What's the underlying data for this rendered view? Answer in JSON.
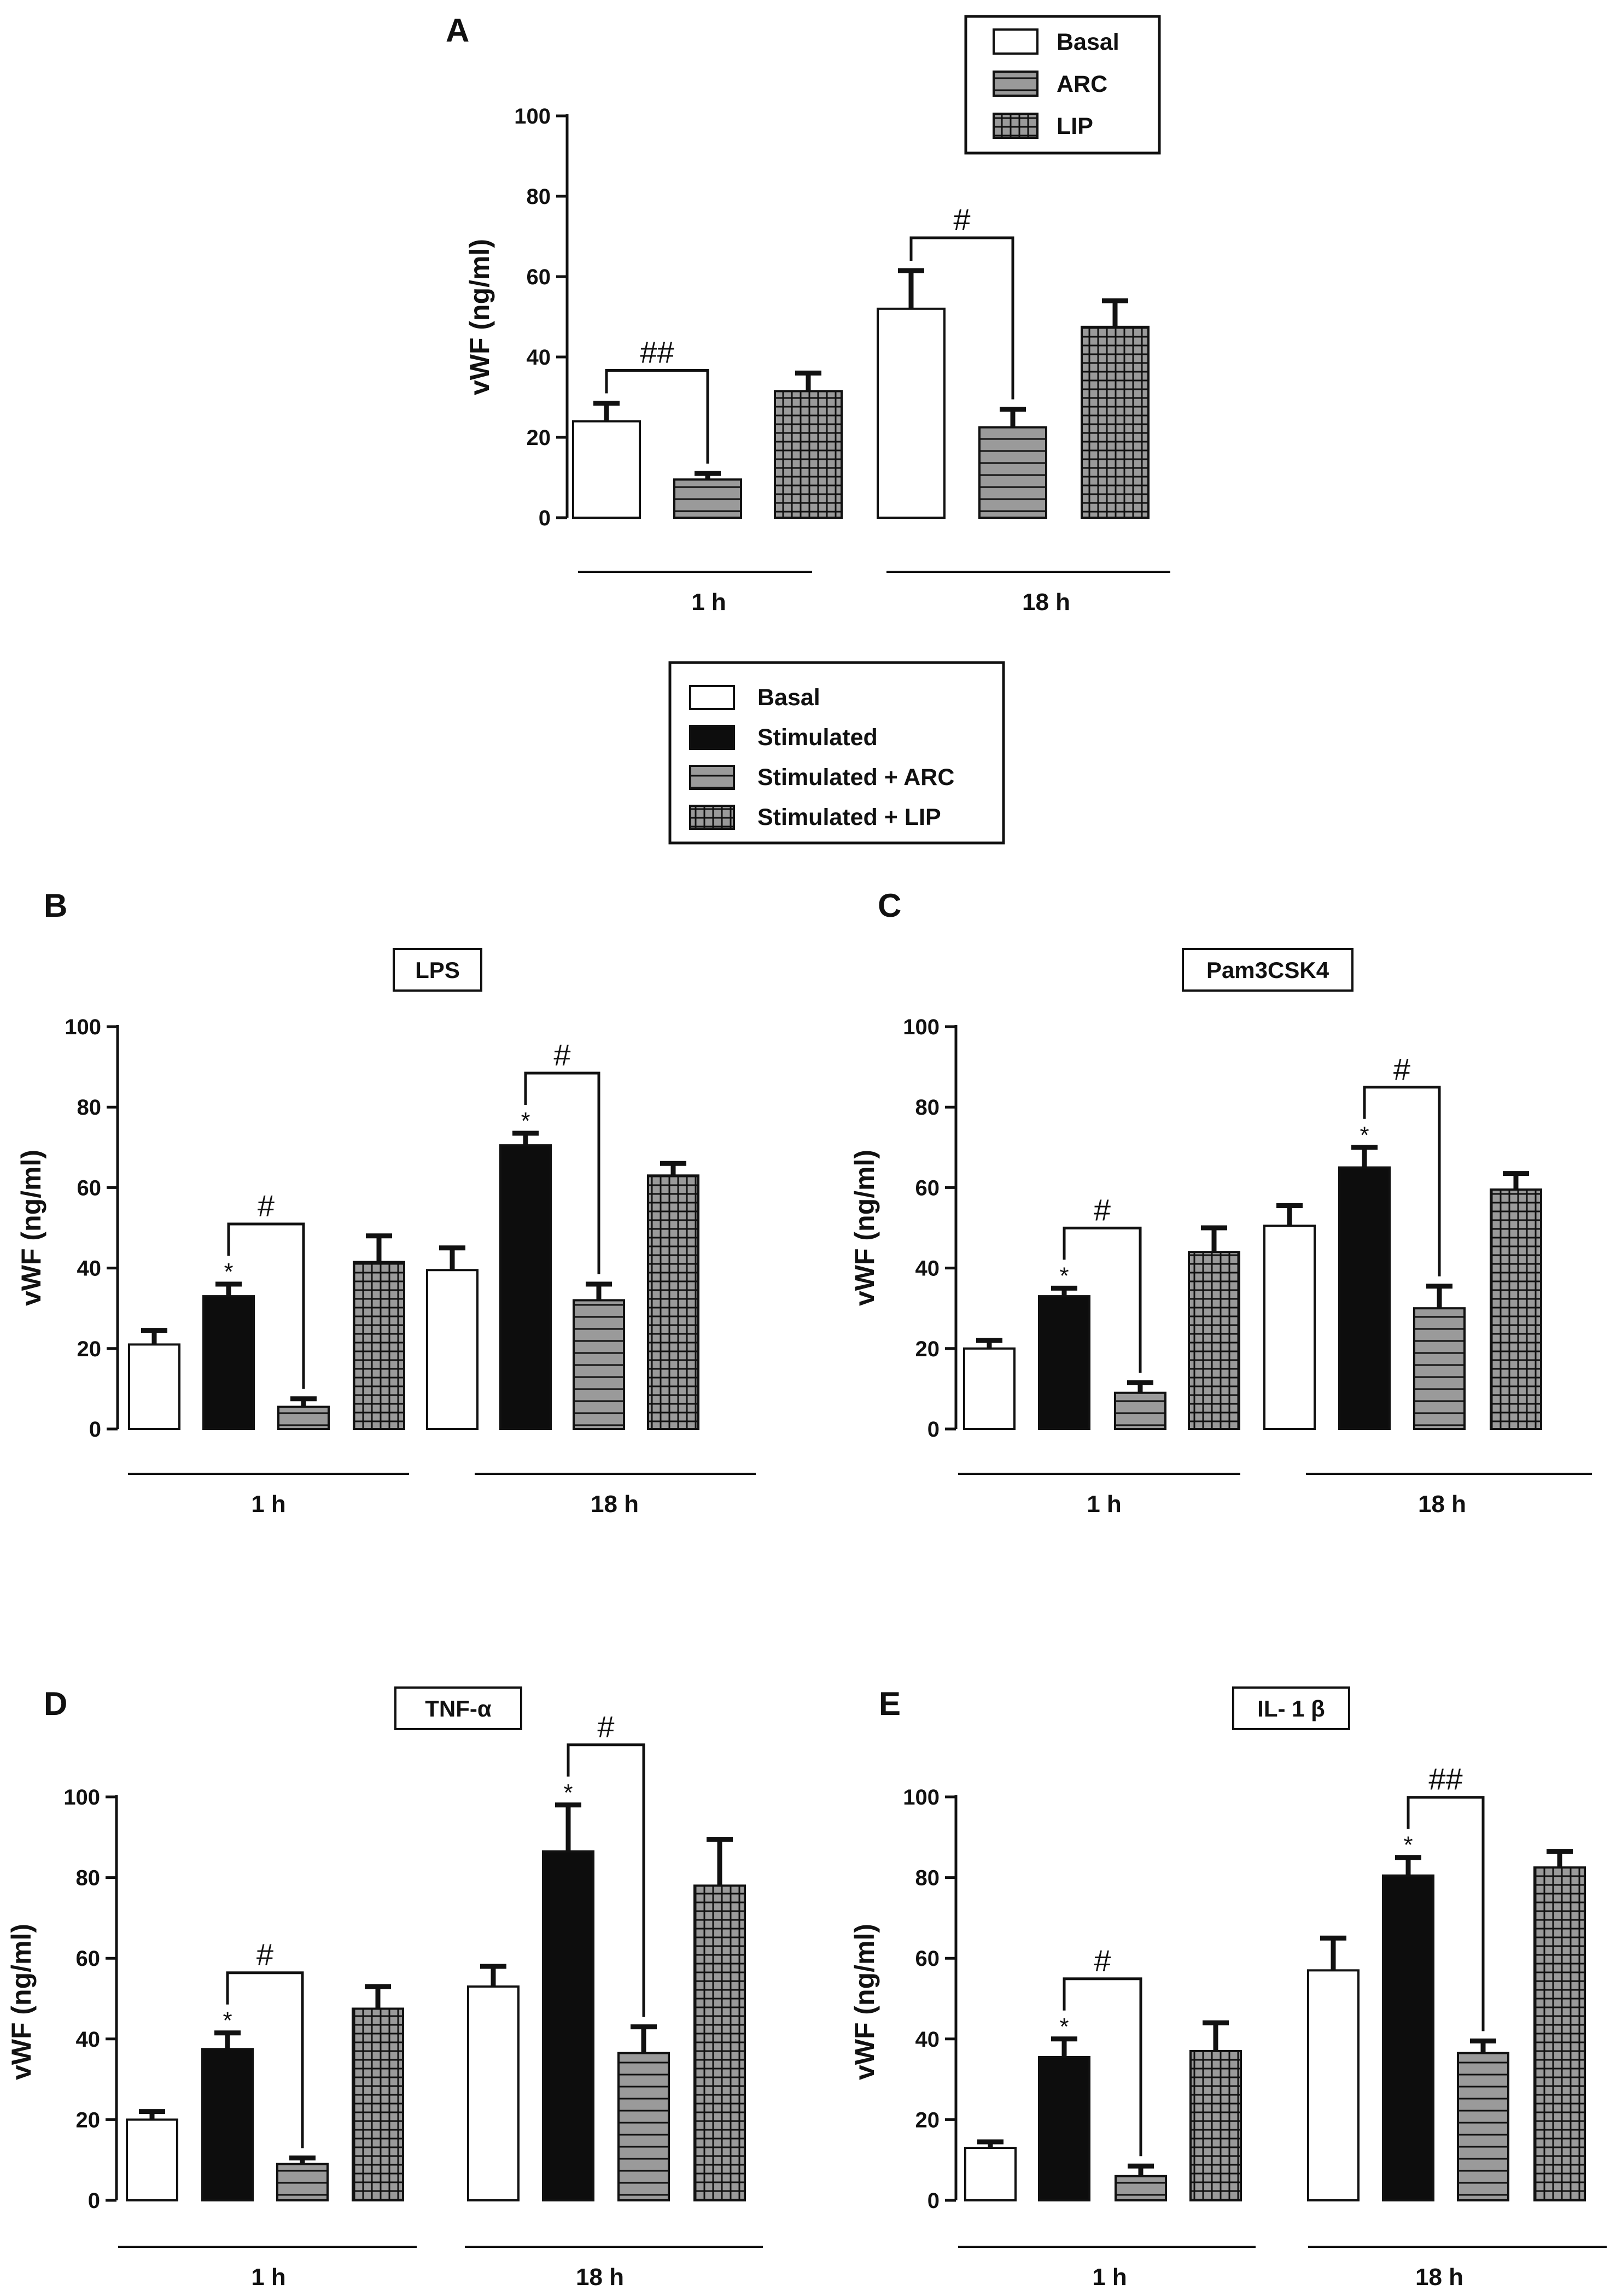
{
  "colors": {
    "basal": "#ffffff",
    "stimulated": "#0d0d0d",
    "arc": "#9a9a9a",
    "lip": "#9a9a9a",
    "outline": "#111111"
  },
  "chart_data": [
    {
      "id": "A",
      "type": "bar",
      "panel_letter": "A",
      "title": "",
      "ylabel": "vWF (ng/ml)",
      "xlabel": "",
      "ylim": [
        0,
        100
      ],
      "yticks": [
        0,
        20,
        40,
        60,
        80,
        100
      ],
      "categories": [
        "1 h",
        "18 h"
      ],
      "legend_entries": [
        "Basal",
        "ARC",
        "LIP"
      ],
      "legend_placement": "top-right",
      "series": [
        {
          "name": "Basal",
          "style": "basal",
          "values": [
            24,
            52
          ],
          "errors": [
            4.5,
            9.5
          ]
        },
        {
          "name": "ARC",
          "style": "arc",
          "values": [
            9.5,
            22.5
          ],
          "errors": [
            1.5,
            4.5
          ]
        },
        {
          "name": "LIP",
          "style": "lip",
          "values": [
            31.5,
            47.5
          ],
          "errors": [
            4.5,
            6.5
          ]
        }
      ],
      "brackets": [
        {
          "group": 0,
          "from": 0,
          "to": 1,
          "label": "##"
        },
        {
          "group": 1,
          "from": 0,
          "to": 1,
          "label": "#"
        }
      ],
      "stars": []
    },
    {
      "id": "B",
      "type": "bar",
      "panel_letter": "B",
      "title": "LPS",
      "ylabel": "vWF (ng/ml)",
      "xlabel": "",
      "ylim": [
        0,
        100
      ],
      "yticks": [
        0,
        20,
        40,
        60,
        80,
        100
      ],
      "categories": [
        "1 h",
        "18 h"
      ],
      "series": [
        {
          "name": "Basal",
          "style": "basal",
          "values": [
            21,
            39.5
          ],
          "errors": [
            3.5,
            5.5
          ]
        },
        {
          "name": "Stimulated",
          "style": "stimulated",
          "values": [
            33,
            70.5
          ],
          "errors": [
            3,
            3
          ]
        },
        {
          "name": "Stimulated + ARC",
          "style": "arc",
          "values": [
            5.5,
            32
          ],
          "errors": [
            2,
            4
          ]
        },
        {
          "name": "Stimulated + LIP",
          "style": "lip",
          "values": [
            41.5,
            63
          ],
          "errors": [
            6.5,
            3
          ]
        }
      ],
      "brackets": [
        {
          "group": 0,
          "from": 1,
          "to": 2,
          "label": "#"
        },
        {
          "group": 1,
          "from": 1,
          "to": 2,
          "label": "#"
        }
      ],
      "stars": [
        {
          "group": 0,
          "series": 1,
          "label": "*"
        },
        {
          "group": 1,
          "series": 1,
          "label": "*"
        }
      ]
    },
    {
      "id": "C",
      "type": "bar",
      "panel_letter": "C",
      "title": "Pam3CSK4",
      "ylabel": "vWF (ng/ml)",
      "xlabel": "",
      "ylim": [
        0,
        100
      ],
      "yticks": [
        0,
        20,
        40,
        60,
        80,
        100
      ],
      "categories": [
        "1 h",
        "18 h"
      ],
      "series": [
        {
          "name": "Basal",
          "style": "basal",
          "values": [
            20,
            50.5
          ],
          "errors": [
            2,
            5
          ]
        },
        {
          "name": "Stimulated",
          "style": "stimulated",
          "values": [
            33,
            65
          ],
          "errors": [
            2,
            5
          ]
        },
        {
          "name": "Stimulated + ARC",
          "style": "arc",
          "values": [
            9,
            30
          ],
          "errors": [
            2.5,
            5.5
          ]
        },
        {
          "name": "Stimulated + LIP",
          "style": "lip",
          "values": [
            44,
            59.5
          ],
          "errors": [
            6,
            4
          ]
        }
      ],
      "brackets": [
        {
          "group": 0,
          "from": 1,
          "to": 2,
          "label": "#"
        },
        {
          "group": 1,
          "from": 1,
          "to": 2,
          "label": "#"
        }
      ],
      "stars": [
        {
          "group": 0,
          "series": 1,
          "label": "*"
        },
        {
          "group": 1,
          "series": 1,
          "label": "*"
        }
      ]
    },
    {
      "id": "D",
      "type": "bar",
      "panel_letter": "D",
      "title": "TNF-α",
      "ylabel": "vWF (ng/ml)",
      "xlabel": "",
      "ylim": [
        0,
        100
      ],
      "yticks": [
        0,
        20,
        40,
        60,
        80,
        100
      ],
      "categories": [
        "1 h",
        "18 h"
      ],
      "series": [
        {
          "name": "Basal",
          "style": "basal",
          "values": [
            20,
            53
          ],
          "errors": [
            2,
            5
          ]
        },
        {
          "name": "Stimulated",
          "style": "stimulated",
          "values": [
            37.5,
            86.5
          ],
          "errors": [
            4,
            11.5
          ]
        },
        {
          "name": "Stimulated + ARC",
          "style": "arc",
          "values": [
            9,
            36.5
          ],
          "errors": [
            1.5,
            6.5
          ]
        },
        {
          "name": "Stimulated + LIP",
          "style": "lip",
          "values": [
            47.5,
            78
          ],
          "errors": [
            5.5,
            11.5
          ]
        }
      ],
      "brackets": [
        {
          "group": 0,
          "from": 1,
          "to": 2,
          "label": "#"
        },
        {
          "group": 1,
          "from": 1,
          "to": 2,
          "label": "#"
        }
      ],
      "stars": [
        {
          "group": 0,
          "series": 1,
          "label": "*"
        },
        {
          "group": 1,
          "series": 1,
          "label": "*"
        }
      ]
    },
    {
      "id": "E",
      "type": "bar",
      "panel_letter": "E",
      "title": "IL- 1 β",
      "ylabel": "vWF (ng/ml)",
      "xlabel": "",
      "ylim": [
        0,
        100
      ],
      "yticks": [
        0,
        20,
        40,
        60,
        80,
        100
      ],
      "categories": [
        "1 h",
        "18 h"
      ],
      "series": [
        {
          "name": "Basal",
          "style": "basal",
          "values": [
            13,
            57
          ],
          "errors": [
            1.5,
            8
          ]
        },
        {
          "name": "Stimulated",
          "style": "stimulated",
          "values": [
            35.5,
            80.5
          ],
          "errors": [
            4.5,
            4.5
          ]
        },
        {
          "name": "Stimulated + ARC",
          "style": "arc",
          "values": [
            6,
            36.5
          ],
          "errors": [
            2.5,
            3
          ]
        },
        {
          "name": "Stimulated + LIP",
          "style": "lip",
          "values": [
            37,
            82.5
          ],
          "errors": [
            7,
            4
          ]
        }
      ],
      "brackets": [
        {
          "group": 0,
          "from": 1,
          "to": 2,
          "label": "#"
        },
        {
          "group": 1,
          "from": 1,
          "to": 2,
          "label": "##"
        }
      ],
      "stars": [
        {
          "group": 0,
          "series": 1,
          "label": "*"
        },
        {
          "group": 1,
          "series": 1,
          "label": "*"
        }
      ]
    }
  ],
  "shared_legend": {
    "entries": [
      {
        "label": "Basal",
        "style": "basal"
      },
      {
        "label": "Stimulated",
        "style": "stimulated"
      },
      {
        "label": "Stimulated + ARC",
        "style": "arc"
      },
      {
        "label": "Stimulated + LIP",
        "style": "lip"
      }
    ]
  }
}
